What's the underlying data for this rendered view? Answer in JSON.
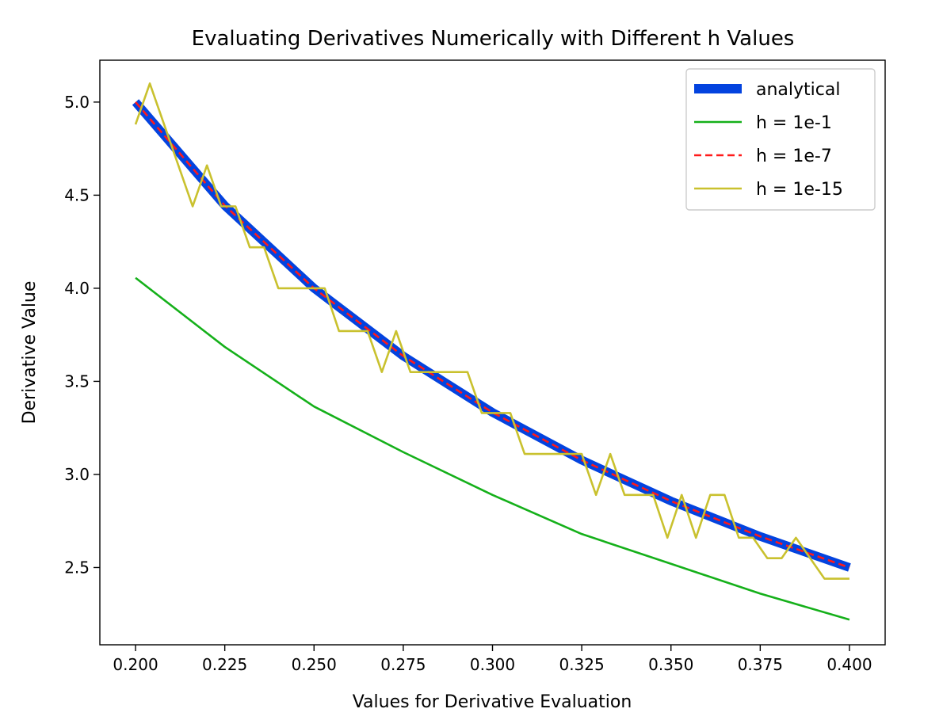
{
  "chart_data": {
    "type": "line",
    "title": "Evaluating Derivatives Numerically with Different h Values",
    "xlabel": "Values for Derivative Evaluation",
    "ylabel": "Derivative Value",
    "xlim": [
      0.19,
      0.41
    ],
    "ylim": [
      2.085,
      5.225
    ],
    "xticks": [
      0.2,
      0.225,
      0.25,
      0.275,
      0.3,
      0.325,
      0.35,
      0.375,
      0.4
    ],
    "xtick_labels": [
      "0.200",
      "0.225",
      "0.250",
      "0.275",
      "0.300",
      "0.325",
      "0.350",
      "0.375",
      "0.400"
    ],
    "yticks": [
      2.5,
      3.0,
      3.5,
      4.0,
      4.5,
      5.0
    ],
    "ytick_labels": [
      "2.5",
      "3.0",
      "3.5",
      "4.0",
      "4.5",
      "5.0"
    ],
    "grid": false,
    "legend_position": "top-right",
    "series": [
      {
        "name": "analytical",
        "color": "#0343df",
        "style": "solid-thick",
        "x": [
          0.2,
          0.225,
          0.25,
          0.275,
          0.3,
          0.325,
          0.35,
          0.375,
          0.4
        ],
        "y": [
          5.0,
          4.444,
          4.0,
          3.636,
          3.333,
          3.077,
          2.857,
          2.667,
          2.5
        ]
      },
      {
        "name": "h = 1e-1",
        "color": "#15b01a",
        "style": "solid",
        "x": [
          0.2,
          0.225,
          0.25,
          0.275,
          0.3,
          0.325,
          0.35,
          0.375,
          0.4
        ],
        "y": [
          4.056,
          3.685,
          3.365,
          3.12,
          2.89,
          2.68,
          2.52,
          2.36,
          2.22
        ]
      },
      {
        "name": "h = 1e-7",
        "color": "#ff1a1a",
        "style": "dashed",
        "x": [
          0.2,
          0.225,
          0.25,
          0.275,
          0.3,
          0.325,
          0.35,
          0.375,
          0.4
        ],
        "y": [
          5.0,
          4.444,
          4.0,
          3.636,
          3.333,
          3.077,
          2.857,
          2.667,
          2.5
        ]
      },
      {
        "name": "h = 1e-15",
        "color": "#c9c12e",
        "style": "solid",
        "x": [
          0.2,
          0.204,
          0.208,
          0.212,
          0.216,
          0.22,
          0.224,
          0.228,
          0.232,
          0.236,
          0.24,
          0.244,
          0.248,
          0.253,
          0.257,
          0.261,
          0.265,
          0.269,
          0.273,
          0.277,
          0.281,
          0.285,
          0.289,
          0.293,
          0.297,
          0.301,
          0.305,
          0.309,
          0.313,
          0.317,
          0.321,
          0.325,
          0.329,
          0.333,
          0.337,
          0.341,
          0.345,
          0.349,
          0.353,
          0.357,
          0.361,
          0.365,
          0.369,
          0.373,
          0.377,
          0.381,
          0.385,
          0.389,
          0.393,
          0.397,
          0.4
        ],
        "y": [
          4.88,
          5.1,
          4.88,
          4.66,
          4.44,
          4.66,
          4.44,
          4.44,
          4.22,
          4.22,
          4.0,
          4.0,
          4.0,
          4.0,
          3.77,
          3.77,
          3.77,
          3.55,
          3.77,
          3.55,
          3.55,
          3.55,
          3.55,
          3.55,
          3.33,
          3.33,
          3.33,
          3.11,
          3.11,
          3.11,
          3.11,
          3.11,
          2.89,
          3.11,
          2.89,
          2.89,
          2.89,
          2.66,
          2.89,
          2.66,
          2.89,
          2.89,
          2.66,
          2.66,
          2.55,
          2.55,
          2.66,
          2.55,
          2.44,
          2.44,
          2.44
        ]
      }
    ]
  }
}
